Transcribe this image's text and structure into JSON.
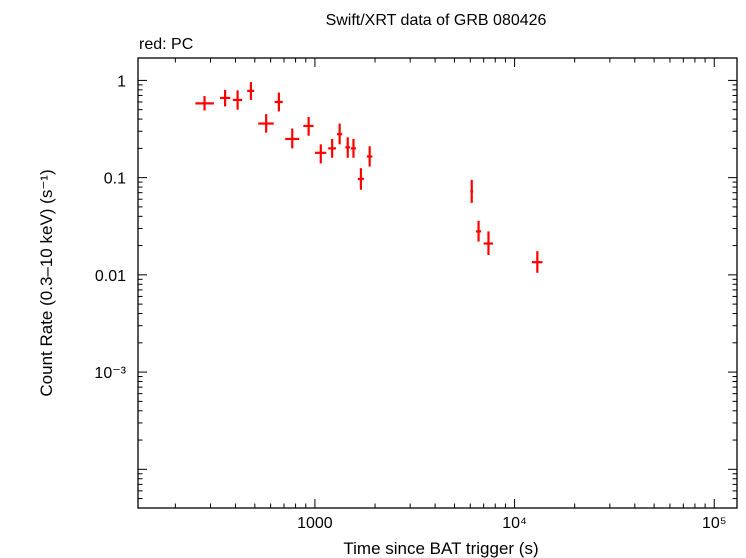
{
  "chart_data": {
    "type": "scatter",
    "title": "Swift/XRT data of GRB 080426",
    "subtitle": "red: PC",
    "xlabel": "Time since BAT trigger (s)",
    "ylabel": "Count Rate (0.3–10 keV) (s⁻¹)",
    "xscale": "log",
    "yscale": "log",
    "xlim": [
      130,
      130000
    ],
    "ylim": [
      4e-05,
      1.7
    ],
    "x_tick_labels": [
      {
        "value": 1000,
        "label": "1000"
      },
      {
        "value": 10000,
        "label": "10⁴"
      },
      {
        "value": 100000,
        "label": "10⁵"
      }
    ],
    "y_tick_labels": [
      {
        "value": 1,
        "label": "1"
      },
      {
        "value": 0.1,
        "label": "0.1"
      },
      {
        "value": 0.01,
        "label": "0.01"
      },
      {
        "value": 0.001,
        "label": "10⁻³"
      }
    ],
    "series": [
      {
        "name": "PC",
        "color": "#ff0000",
        "points": [
          {
            "x": 280,
            "xlo": 252,
            "xhi": 312,
            "y": 0.58,
            "ylo": 0.49,
            "yhi": 0.69
          },
          {
            "x": 355,
            "xlo": 335,
            "xhi": 377,
            "y": 0.66,
            "ylo": 0.54,
            "yhi": 0.8
          },
          {
            "x": 410,
            "xlo": 388,
            "xhi": 432,
            "y": 0.63,
            "ylo": 0.5,
            "yhi": 0.79
          },
          {
            "x": 478,
            "xlo": 458,
            "xhi": 496,
            "y": 0.78,
            "ylo": 0.63,
            "yhi": 0.96
          },
          {
            "x": 570,
            "xlo": 520,
            "xhi": 622,
            "y": 0.36,
            "ylo": 0.29,
            "yhi": 0.45
          },
          {
            "x": 660,
            "xlo": 628,
            "xhi": 690,
            "y": 0.6,
            "ylo": 0.48,
            "yhi": 0.75
          },
          {
            "x": 770,
            "xlo": 710,
            "xhi": 835,
            "y": 0.25,
            "ylo": 0.2,
            "yhi": 0.32
          },
          {
            "x": 930,
            "xlo": 875,
            "xhi": 985,
            "y": 0.34,
            "ylo": 0.27,
            "yhi": 0.42
          },
          {
            "x": 1070,
            "xlo": 1000,
            "xhi": 1140,
            "y": 0.18,
            "ylo": 0.14,
            "yhi": 0.22
          },
          {
            "x": 1220,
            "xlo": 1165,
            "xhi": 1275,
            "y": 0.2,
            "ylo": 0.16,
            "yhi": 0.25
          },
          {
            "x": 1330,
            "xlo": 1290,
            "xhi": 1370,
            "y": 0.28,
            "ylo": 0.22,
            "yhi": 0.36
          },
          {
            "x": 1460,
            "xlo": 1420,
            "xhi": 1500,
            "y": 0.205,
            "ylo": 0.16,
            "yhi": 0.26
          },
          {
            "x": 1560,
            "xlo": 1515,
            "xhi": 1605,
            "y": 0.2,
            "ylo": 0.16,
            "yhi": 0.25
          },
          {
            "x": 1700,
            "xlo": 1640,
            "xhi": 1760,
            "y": 0.097,
            "ylo": 0.075,
            "yhi": 0.125
          },
          {
            "x": 1880,
            "xlo": 1820,
            "xhi": 1940,
            "y": 0.165,
            "ylo": 0.13,
            "yhi": 0.21
          },
          {
            "x": 6100,
            "xlo": 6000,
            "xhi": 6200,
            "y": 0.072,
            "ylo": 0.055,
            "yhi": 0.095
          },
          {
            "x": 6600,
            "xlo": 6400,
            "xhi": 6800,
            "y": 0.028,
            "ylo": 0.022,
            "yhi": 0.036
          },
          {
            "x": 7400,
            "xlo": 7000,
            "xhi": 7800,
            "y": 0.021,
            "ylo": 0.016,
            "yhi": 0.028
          },
          {
            "x": 13000,
            "xlo": 12200,
            "xhi": 13800,
            "y": 0.0135,
            "ylo": 0.0105,
            "yhi": 0.0175
          }
        ]
      }
    ]
  }
}
